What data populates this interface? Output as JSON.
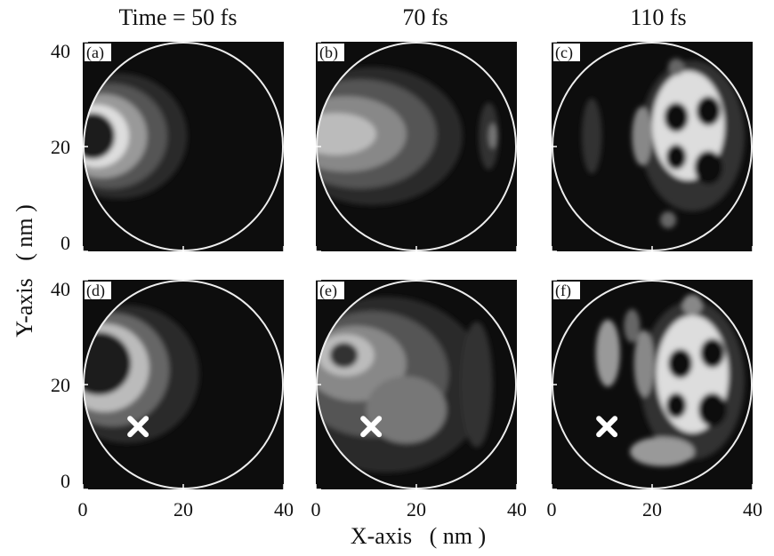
{
  "chart_data": {
    "type": "contour",
    "column_titles": [
      "Time = 50 fs",
      "70 fs",
      "110 fs"
    ],
    "x_label": "X-axis   ( nm )",
    "y_label": "Y-axis   ( nm )",
    "xlim": [
      0,
      40
    ],
    "ylim": [
      0,
      40
    ],
    "xticks": [
      0,
      20,
      40
    ],
    "yticks": [
      0,
      20,
      40
    ],
    "panels": [
      {
        "label": "(a)"
      },
      {
        "label": "(b)"
      },
      {
        "label": "(c)"
      },
      {
        "label": "(d)",
        "marker": {
          "x": 11,
          "y": 12
        }
      },
      {
        "label": "(e)",
        "marker": {
          "x": 11,
          "y": 12
        }
      },
      {
        "label": "(f)",
        "marker": {
          "x": 11,
          "y": 12
        }
      }
    ]
  }
}
